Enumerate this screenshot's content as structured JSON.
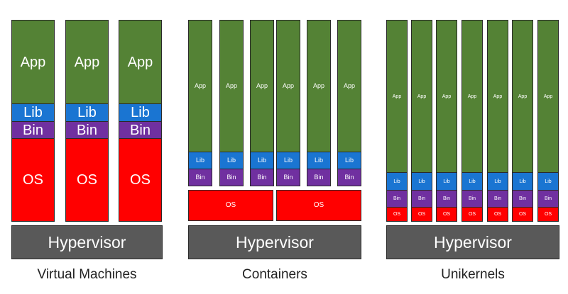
{
  "colors": {
    "app": "#548235",
    "lib": "#1a75d2",
    "bin": "#7030a0",
    "os": "#ff0000",
    "hypervisor": "#595959"
  },
  "sections": {
    "vm": {
      "caption": "Virtual Machines",
      "hypervisor": "Hypervisor",
      "stacks": [
        {
          "app": "App",
          "lib": "Lib",
          "bin": "Bin",
          "os": "OS"
        },
        {
          "app": "App",
          "lib": "Lib",
          "bin": "Bin",
          "os": "OS"
        },
        {
          "app": "App",
          "lib": "Lib",
          "bin": "Bin",
          "os": "OS"
        }
      ]
    },
    "containers": {
      "caption": "Containers",
      "hypervisor": "Hypervisor",
      "stacks": [
        {
          "app": "App",
          "lib": "Lib",
          "bin": "Bin"
        },
        {
          "app": "App",
          "lib": "Lib",
          "bin": "Bin"
        },
        {
          "app": "App",
          "lib": "Lib",
          "bin": "Bin"
        },
        {
          "app": "App",
          "lib": "Lib",
          "bin": "Bin"
        },
        {
          "app": "App",
          "lib": "Lib",
          "bin": "Bin"
        },
        {
          "app": "App",
          "lib": "Lib",
          "bin": "Bin"
        }
      ],
      "os": [
        "OS",
        "OS"
      ]
    },
    "unikernels": {
      "caption": "Unikernels",
      "hypervisor": "Hypervisor",
      "stacks": [
        {
          "app": "App",
          "lib": "Lib",
          "bin": "Bin",
          "os": "OS"
        },
        {
          "app": "App",
          "lib": "Lib",
          "bin": "Bin",
          "os": "OS"
        },
        {
          "app": "App",
          "lib": "Lib",
          "bin": "Bin",
          "os": "OS"
        },
        {
          "app": "App",
          "lib": "Lib",
          "bin": "Bin",
          "os": "OS"
        },
        {
          "app": "App",
          "lib": "Lib",
          "bin": "Bin",
          "os": "OS"
        },
        {
          "app": "App",
          "lib": "Lib",
          "bin": "Bin",
          "os": "OS"
        },
        {
          "app": "App",
          "lib": "Lib",
          "bin": "Bin",
          "os": "OS"
        }
      ]
    }
  }
}
